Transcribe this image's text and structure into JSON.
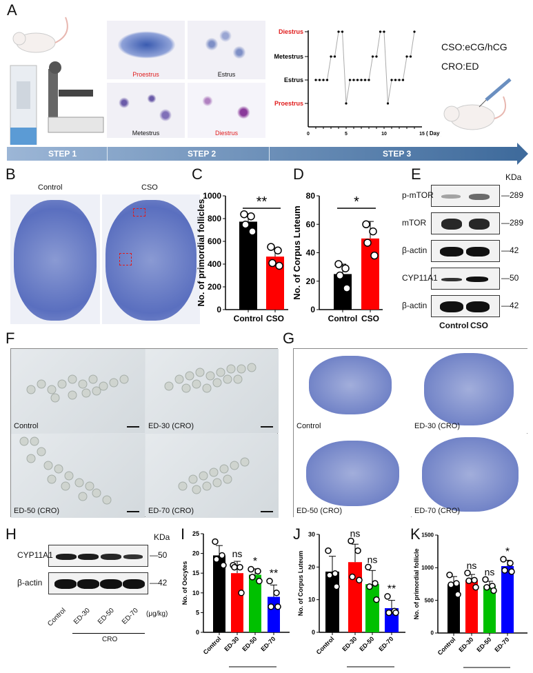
{
  "panels": {
    "A": "A",
    "B": "B",
    "C": "C",
    "D": "D",
    "E": "E",
    "F": "F",
    "G": "G",
    "H": "H",
    "I": "I",
    "J": "J",
    "K": "K"
  },
  "panelA": {
    "micrographs": [
      "Proestrus",
      "Estrus",
      "Metestrus",
      "Diestrus"
    ],
    "treatments": [
      "CSO:eCG/hCG",
      "CRO:ED"
    ],
    "steps": [
      "STEP 1",
      "STEP 2",
      "STEP 3"
    ]
  },
  "panelB": {
    "labels": [
      "Control",
      "CSO"
    ]
  },
  "panelE": {
    "kda": "KDa",
    "rows": [
      {
        "label": "p-mTOR",
        "kda": "289"
      },
      {
        "label": "mTOR",
        "kda": "289"
      },
      {
        "label": "β-actin",
        "kda": "42"
      },
      {
        "label": "CYP11A1",
        "kda": "50"
      },
      {
        "label": "β-actin",
        "kda": "42"
      }
    ],
    "lanes": [
      "Control",
      "CSO"
    ]
  },
  "panelF": {
    "labels": [
      "Control",
      "ED-30 (CRO)",
      "ED-50 (CRO)",
      "ED-70 (CRO)"
    ]
  },
  "panelG": {
    "labels": [
      "Control",
      "ED-30 (CRO)",
      "ED-50 (CRO)",
      "ED-70 (CRO)"
    ]
  },
  "panelH": {
    "kda": "KDa",
    "rows": [
      {
        "label": "CYP11A1",
        "kda": "50"
      },
      {
        "label": "β-actin",
        "kda": "42"
      }
    ],
    "lanes": [
      "Control",
      "ED-30",
      "ED-50",
      "ED-70"
    ],
    "unit": "(μg/kg)",
    "group": "CRO"
  },
  "colors": {
    "control": "#000000",
    "cso": "#ff0000",
    "ed30": "#ff0000",
    "ed50": "#00c000",
    "ed70": "#0000ff",
    "highlight_red": "#e01b1b"
  },
  "chart_data": [
    {
      "id": "A",
      "type": "line",
      "xlabel": "( Day )",
      "xlim": [
        0,
        15
      ],
      "xticks": [
        0,
        5,
        10,
        15
      ],
      "ycategories": [
        "Proestrus",
        "Estrus",
        "Metestrus",
        "Diestrus"
      ],
      "x": [
        1,
        1.5,
        2,
        2.5,
        3,
        3.5,
        4,
        4.5,
        5,
        5.5,
        6,
        6.5,
        7,
        7.5,
        8,
        8.5,
        9,
        9.5,
        10,
        10.5,
        11,
        11.5,
        12,
        12.5,
        13,
        13.5,
        14
      ],
      "y": [
        "Estrus",
        "Estrus",
        "Estrus",
        "Estrus",
        "Metestrus",
        "Metestrus",
        "Diestrus",
        "Diestrus",
        "Proestrus",
        "Estrus",
        "Estrus",
        "Estrus",
        "Estrus",
        "Estrus",
        "Estrus",
        "Metestrus",
        "Metestrus",
        "Diestrus",
        "Diestrus",
        "Proestrus",
        "Estrus",
        "Estrus",
        "Estrus",
        "Estrus",
        "Metestrus",
        "Metestrus",
        "Diestrus"
      ]
    },
    {
      "id": "C",
      "type": "bar",
      "ylabel": "No. of primordial follicles",
      "ylim": [
        0,
        1000
      ],
      "yticks": [
        0,
        200,
        400,
        600,
        800,
        1000
      ],
      "categories": [
        "Control",
        "CSO"
      ],
      "values": [
        773,
        466
      ],
      "errors": [
        60,
        75
      ],
      "points": [
        [
          838,
          820,
          747,
          686
        ],
        [
          551,
          520,
          409,
          385
        ]
      ],
      "colors": [
        "#000000",
        "#ff0000"
      ],
      "significance": [
        {
          "label": "**",
          "between": [
            "Control",
            "CSO"
          ]
        }
      ]
    },
    {
      "id": "D",
      "type": "bar",
      "ylabel": "No. of Corpus Luteum",
      "ylim": [
        0,
        80
      ],
      "yticks": [
        0,
        20,
        40,
        60,
        80
      ],
      "categories": [
        "Control",
        "CSO"
      ],
      "values": [
        25,
        50
      ],
      "errors": [
        7,
        12
      ],
      "points": [
        [
          32,
          29,
          24,
          15
        ],
        [
          60,
          55,
          47,
          38
        ]
      ],
      "colors": [
        "#000000",
        "#ff0000"
      ],
      "significance": [
        {
          "label": "*",
          "between": [
            "Control",
            "CSO"
          ]
        }
      ]
    },
    {
      "id": "I",
      "type": "bar",
      "ylabel": "No. of Oocytes",
      "ylim": [
        0,
        25
      ],
      "yticks": [
        0,
        5,
        10,
        15,
        20,
        25
      ],
      "categories": [
        "Control",
        "ED-30",
        "ED-50",
        "ED-70"
      ],
      "group": "CRO",
      "values": [
        19.5,
        15,
        14.6,
        9
      ],
      "errors": [
        2.5,
        3,
        1.5,
        3
      ],
      "points": [
        [
          23,
          19.5,
          18.5,
          17
        ],
        [
          17,
          16.5,
          16.5,
          10
        ],
        [
          16,
          15.5,
          14,
          13
        ],
        [
          13,
          10,
          6.5,
          6.5
        ]
      ],
      "colors": [
        "#000000",
        "#ff0000",
        "#00c000",
        "#0000ff"
      ],
      "labels": [
        "",
        "ns",
        "*",
        "**"
      ]
    },
    {
      "id": "J",
      "type": "bar",
      "ylabel": "No. of Corpus Luteum",
      "ylim": [
        0,
        30
      ],
      "yticks": [
        0,
        10,
        20,
        30
      ],
      "categories": [
        "Control",
        "ED-30",
        "ED-50",
        "ED-70"
      ],
      "group": "CRO",
      "values": [
        18.6,
        21.5,
        14.75,
        7.4
      ],
      "errors": [
        4.7,
        5.5,
        4.2,
        2.4
      ],
      "points": [
        [
          25,
          18,
          17.5,
          14
        ],
        [
          28,
          25,
          17,
          16
        ],
        [
          20,
          15,
          14,
          10
        ],
        [
          11,
          6.5,
          6,
          6
        ]
      ],
      "colors": [
        "#000000",
        "#ff0000",
        "#00c000",
        "#0000ff"
      ],
      "labels": [
        "",
        "ns",
        "ns",
        "**"
      ]
    },
    {
      "id": "K",
      "type": "bar",
      "ylabel": "No. of primordial follicle",
      "ylim": [
        0,
        1500
      ],
      "yticks": [
        0,
        500,
        1000,
        1500
      ],
      "categories": [
        "Control",
        "ED-30",
        "ED-50",
        "ED-70"
      ],
      "group": "CRO",
      "values": [
        745,
        807,
        722,
        1025
      ],
      "errors": [
        120,
        90,
        70,
        90
      ],
      "points": [
        [
          890,
          760,
          740,
          590
        ],
        [
          920,
          810,
          800,
          700
        ],
        [
          820,
          720,
          700,
          650
        ],
        [
          1130,
          1070,
          960,
          940
        ]
      ],
      "colors": [
        "#000000",
        "#ff0000",
        "#00c000",
        "#0000ff"
      ],
      "labels": [
        "",
        "ns",
        "ns",
        "*"
      ]
    }
  ]
}
